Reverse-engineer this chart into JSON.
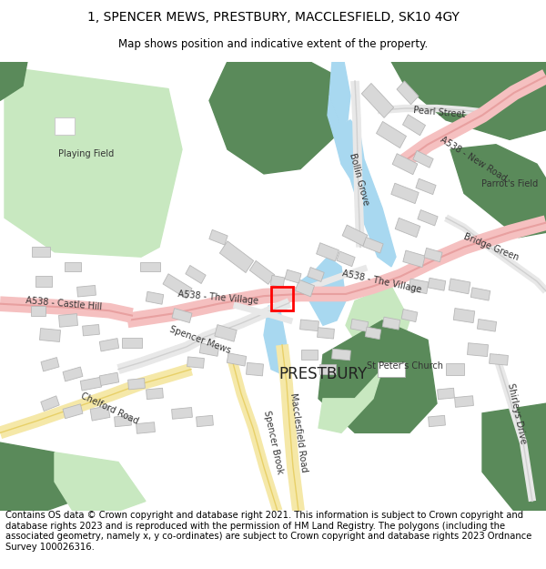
{
  "title_line1": "1, SPENCER MEWS, PRESTBURY, MACCLESFIELD, SK10 4GY",
  "title_line2": "Map shows position and indicative extent of the property.",
  "footer_text": "Contains OS data © Crown copyright and database right 2021. This information is subject to Crown copyright and database rights 2023 and is reproduced with the permission of HM Land Registry. The polygons (including the associated geometry, namely x, y co-ordinates) are subject to Crown copyright and database rights 2023 Ordnance Survey 100026316.",
  "bg_color": "#ffffff",
  "title_fontsize": 10,
  "subtitle_fontsize": 8.5,
  "footer_fontsize": 7.2,
  "fig_width": 6.0,
  "fig_height": 6.25,
  "dpi": 100
}
